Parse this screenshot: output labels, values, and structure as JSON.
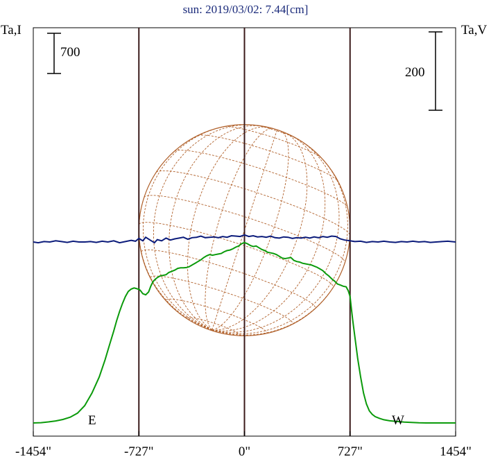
{
  "chart_data": {
    "type": "line",
    "title": "sun: 2019/03/02: 7.44[cm]",
    "ylabel_left": "Ta,I",
    "ylabel_right": "Ta,V",
    "scale_left": "700",
    "scale_right": "200",
    "limb_labels": {
      "east": "E",
      "west": "W"
    },
    "x_ticks": [
      {
        "value": -1454,
        "label": "-1454\""
      },
      {
        "value": -727,
        "label": "-727\""
      },
      {
        "value": 0,
        "label": "0\""
      },
      {
        "value": 727,
        "label": "727\""
      },
      {
        "value": 1454,
        "label": "1454\""
      }
    ],
    "xlim": [
      -1454,
      1454
    ],
    "ylim_intensity": [
      -100,
      2750
    ],
    "limb_x": [
      -727,
      727
    ],
    "solar_radius": 727,
    "grid": false,
    "colors": {
      "intensity": "#0a9a0a",
      "polarization": "#0a1a7a",
      "disk": "#b0602a",
      "limb_lines": "#3a1a1a",
      "title": "#1a2a7a"
    },
    "series": [
      {
        "name": "Ta,I",
        "x": [
          -1454,
          -1400,
          -1350,
          -1300,
          -1250,
          -1200,
          -1150,
          -1100,
          -1050,
          -1000,
          -960,
          -930,
          -900,
          -880,
          -860,
          -840,
          -820,
          -800,
          -780,
          -760,
          -745,
          -735,
          -727,
          -715,
          -700,
          -680,
          -660,
          -645,
          -630,
          -615,
          -600,
          -580,
          -560,
          -540,
          -520,
          -500,
          -480,
          -460,
          -440,
          -420,
          -400,
          -380,
          -360,
          -340,
          -320,
          -300,
          -280,
          -260,
          -240,
          -220,
          -200,
          -180,
          -160,
          -140,
          -120,
          -100,
          -80,
          -60,
          -40,
          -20,
          0,
          20,
          40,
          60,
          80,
          100,
          120,
          140,
          160,
          180,
          200,
          220,
          240,
          260,
          280,
          300,
          320,
          340,
          360,
          380,
          400,
          420,
          440,
          460,
          480,
          500,
          520,
          540,
          560,
          580,
          600,
          620,
          640,
          660,
          680,
          700,
          715,
          727,
          735,
          745,
          760,
          780,
          800,
          820,
          840,
          860,
          880,
          900,
          930,
          960,
          1000,
          1050,
          1100,
          1150,
          1200,
          1250,
          1300,
          1350,
          1400,
          1454
        ],
        "y": [
          0,
          5,
          18,
          35,
          60,
          100,
          170,
          300,
          520,
          800,
          1100,
          1350,
          1600,
          1780,
          1940,
          2080,
          2200,
          2290,
          2330,
          2350,
          2340,
          2330,
          2330,
          2300,
          2250,
          2230,
          2280,
          2380,
          2460,
          2500,
          2530,
          2560,
          2570,
          2580,
          2620,
          2640,
          2660,
          2690,
          2700,
          2700,
          2705,
          2720,
          2750,
          2780,
          2810,
          2840,
          2880,
          2910,
          2930,
          2920,
          2930,
          2940,
          2950,
          2980,
          3000,
          3010,
          3030,
          3060,
          3080,
          3120,
          3140,
          3120,
          3090,
          3070,
          3080,
          3050,
          3020,
          3000,
          2970,
          2960,
          2950,
          2930,
          2900,
          2870,
          2860,
          2870,
          2880,
          2830,
          2810,
          2800,
          2780,
          2770,
          2760,
          2750,
          2730,
          2710,
          2680,
          2650,
          2600,
          2560,
          2510,
          2470,
          2420,
          2400,
          2380,
          2370,
          2300,
          2200,
          2020,
          1800,
          1500,
          1120,
          800,
          520,
          330,
          210,
          150,
          110,
          80,
          55,
          38,
          25,
          14,
          8,
          3,
          0,
          0,
          0,
          0,
          0
        ],
        "note": ""
      },
      {
        "name": "Ta,V",
        "x": [
          -1454,
          -1420,
          -1380,
          -1340,
          -1300,
          -1260,
          -1220,
          -1180,
          -1140,
          -1100,
          -1060,
          -1020,
          -980,
          -940,
          -900,
          -860,
          -820,
          -780,
          -750,
          -727,
          -700,
          -680,
          -650,
          -620,
          -600,
          -570,
          -540,
          -510,
          -480,
          -450,
          -420,
          -390,
          -360,
          -330,
          -300,
          -270,
          -240,
          -210,
          -180,
          -150,
          -120,
          -90,
          -60,
          -30,
          0,
          30,
          60,
          90,
          120,
          150,
          180,
          210,
          240,
          270,
          300,
          330,
          360,
          390,
          420,
          450,
          480,
          510,
          540,
          570,
          600,
          630,
          660,
          690,
          727,
          760,
          800,
          840,
          880,
          920,
          960,
          1000,
          1040,
          1080,
          1120,
          1160,
          1200,
          1240,
          1280,
          1320,
          1360,
          1400,
          1454
        ],
        "y": [
          0,
          -2,
          1,
          0,
          3,
          1,
          -1,
          2,
          0,
          0,
          1,
          -1,
          2,
          0,
          3,
          -2,
          1,
          4,
          2,
          9,
          3,
          12,
          5,
          -2,
          6,
          3,
          10,
          5,
          8,
          10,
          12,
          7,
          11,
          12,
          15,
          11,
          12,
          13,
          11,
          14,
          12,
          16,
          15,
          14,
          18,
          14,
          16,
          13,
          14,
          12,
          15,
          11,
          10,
          13,
          12,
          9,
          11,
          10,
          12,
          10,
          13,
          11,
          14,
          12,
          15,
          14,
          8,
          5,
          3,
          1,
          2,
          -1,
          1,
          0,
          2,
          0,
          -1,
          1,
          0,
          2,
          0,
          1,
          -1,
          0,
          1,
          2,
          0
        ]
      }
    ]
  }
}
